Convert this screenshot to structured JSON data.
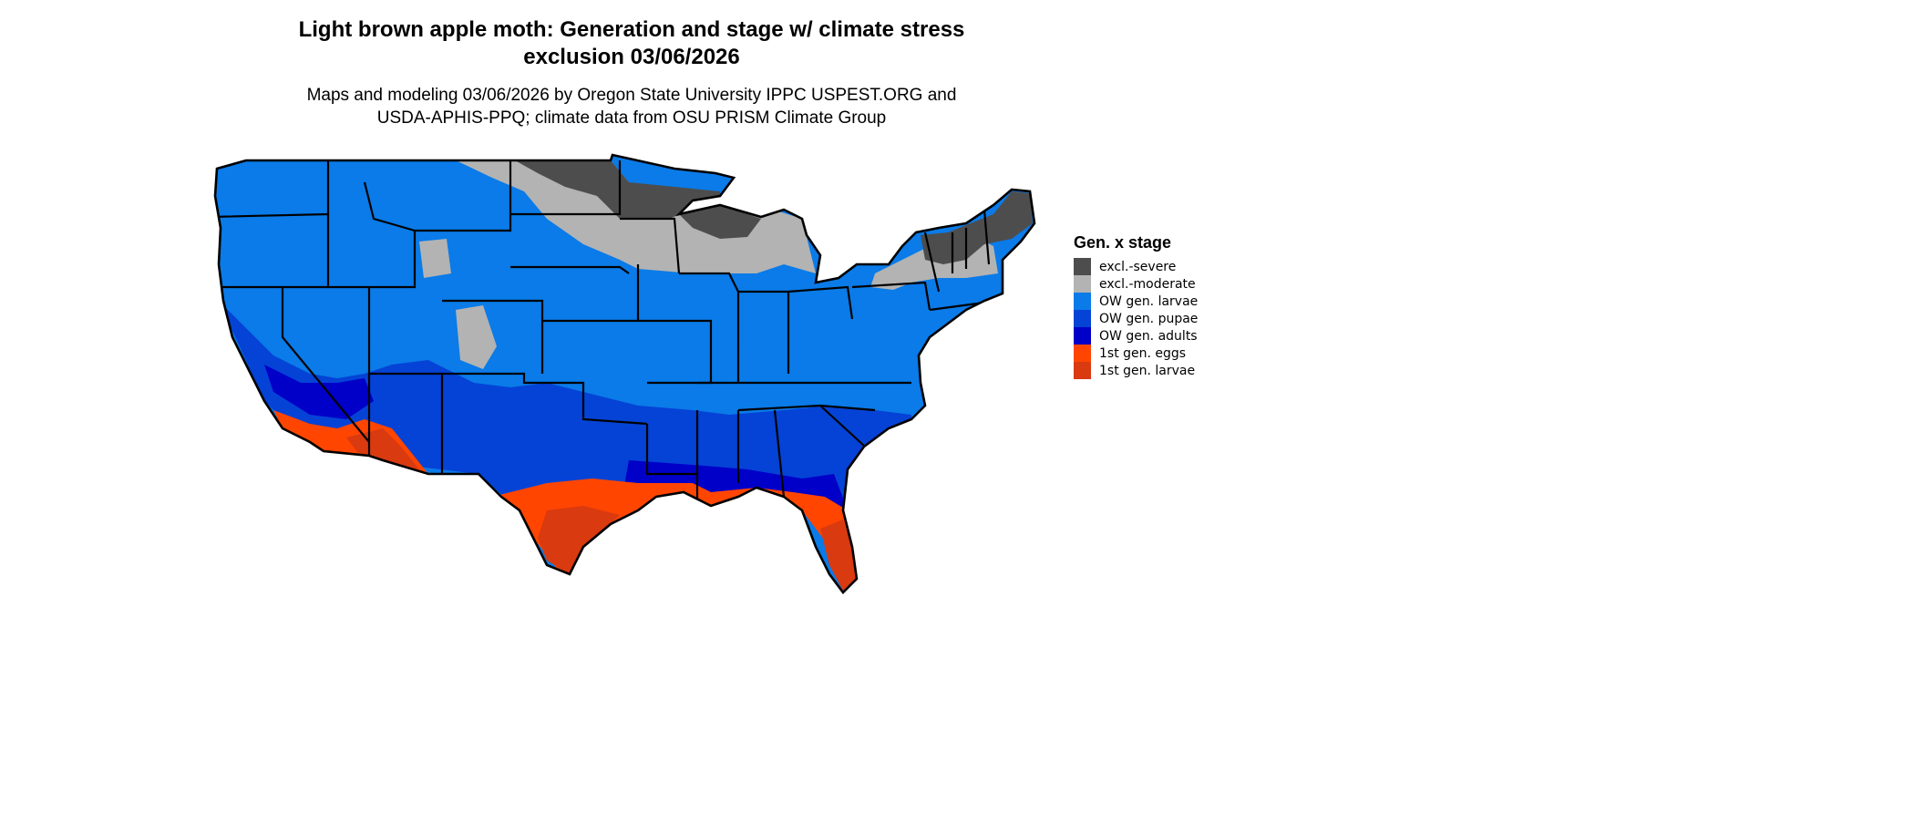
{
  "title_line1": "Light brown apple moth: Generation and stage w/ climate stress",
  "title_line2": "exclusion 03/06/2026",
  "subtitle_line1": "Maps and modeling 03/06/2026 by Oregon State University IPPC USPEST.ORG and",
  "subtitle_line2": "USDA-APHIS-PPQ; climate data from OSU PRISM Climate Group",
  "legend": {
    "title": "Gen. x stage",
    "items": [
      {
        "label": "excl.-severe",
        "color": "#4d4d4d"
      },
      {
        "label": "excl.-moderate",
        "color": "#b3b3b3"
      },
      {
        "label": "OW gen. larvae",
        "color": "#0a7be8"
      },
      {
        "label": "OW gen. pupae",
        "color": "#0543d6"
      },
      {
        "label": "OW gen. adults",
        "color": "#0000c8"
      },
      {
        "label": "1st gen. eggs",
        "color": "#ff4500"
      },
      {
        "label": "1st gen. larvae",
        "color": "#d93a10"
      }
    ]
  }
}
